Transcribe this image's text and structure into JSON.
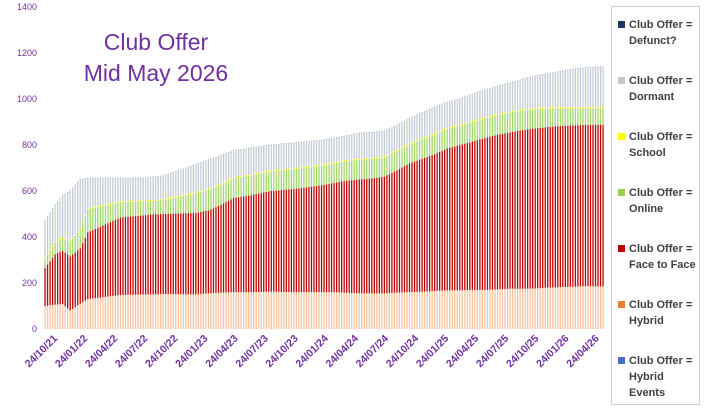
{
  "chart_data": {
    "type": "bar",
    "stacked": true,
    "title_lines": [
      "Club Offer",
      "Mid May 2026"
    ],
    "xlabel": "",
    "ylabel": "",
    "ylim": [
      0,
      1400
    ],
    "y_ticks": [
      0,
      200,
      400,
      600,
      800,
      1000,
      1200,
      1400
    ],
    "x_tick_labels": [
      "24/10/21",
      "24/01/22",
      "24/04/22",
      "24/07/22",
      "24/10/22",
      "24/01/23",
      "24/04/23",
      "24/07/23",
      "24/10/23",
      "24/01/24",
      "24/04/24",
      "24/07/24",
      "24/10/24",
      "24/01/25",
      "24/04/25",
      "24/07/25",
      "24/10/25",
      "24/01/26",
      "24/04/26"
    ],
    "grid": false,
    "legend_position": "right",
    "bars_per_tick": 6,
    "series": [
      {
        "name": "Club Offer = Hybrid Events",
        "color": "#4472c4"
      },
      {
        "name": "Club Offer = Hybrid",
        "color": "#ed7d31"
      },
      {
        "name": "Club Offer = Face to Face",
        "color": "#c00000"
      },
      {
        "name": "Club Offer = Online",
        "color": "#92d050"
      },
      {
        "name": "Club Offer = School",
        "color": "#ffff00"
      },
      {
        "name": "Club Offer = Dormant",
        "color": "#c8c8c8"
      },
      {
        "name": "Club Offer = Defunct?",
        "color": "#1f3864"
      }
    ],
    "anchors": {
      "index": [
        0,
        4,
        7,
        10,
        14,
        17,
        30,
        40,
        42,
        47,
        60,
        65,
        70,
        75,
        81,
        90,
        100,
        110,
        115,
        120,
        125,
        130,
        135,
        140,
        145,
        150,
        155,
        160,
        165,
        170,
        175,
        180,
        185,
        190,
        195,
        200,
        205,
        210,
        215,
        222
      ],
      "hybrid_cum": [
        100,
        106,
        108,
        80,
        110,
        130,
        148,
        150,
        150,
        152,
        150,
        155,
        158,
        160,
        160,
        162,
        160,
        160,
        160,
        158,
        155,
        155,
        155,
        158,
        160,
        162,
        165,
        168,
        168,
        170,
        170,
        172,
        175,
        175,
        176,
        180,
        182,
        184,
        186,
        185
      ],
      "f2f_cum": [
        265,
        325,
        340,
        315,
        350,
        420,
        485,
        495,
        498,
        500,
        505,
        515,
        540,
        570,
        580,
        600,
        610,
        625,
        635,
        645,
        650,
        655,
        662,
        690,
        720,
        740,
        760,
        785,
        800,
        815,
        830,
        845,
        855,
        865,
        872,
        878,
        882,
        885,
        888,
        888
      ],
      "online_cum": [
        305,
        375,
        395,
        380,
        430,
        520,
        550,
        555,
        555,
        560,
        590,
        605,
        625,
        655,
        665,
        685,
        695,
        710,
        720,
        730,
        735,
        740,
        745,
        775,
        800,
        825,
        845,
        870,
        885,
        900,
        915,
        930,
        940,
        950,
        955,
        958,
        960,
        960,
        960,
        960
      ],
      "school_cum": [
        310,
        380,
        400,
        385,
        435,
        525,
        555,
        560,
        560,
        565,
        595,
        610,
        630,
        660,
        670,
        690,
        700,
        715,
        725,
        735,
        740,
        745,
        750,
        780,
        805,
        830,
        850,
        875,
        890,
        905,
        920,
        935,
        945,
        955,
        960,
        963,
        965,
        965,
        965,
        965
      ],
      "dormant_cum": [
        470,
        540,
        580,
        600,
        650,
        655,
        655,
        655,
        660,
        665,
        715,
        735,
        755,
        775,
        785,
        800,
        810,
        820,
        830,
        840,
        850,
        855,
        860,
        885,
        915,
        940,
        965,
        985,
        1000,
        1020,
        1040,
        1055,
        1070,
        1085,
        1100,
        1110,
        1120,
        1130,
        1135,
        1140
      ],
      "defunct_cum": [
        472,
        542,
        582,
        602,
        652,
        657,
        657,
        657,
        662,
        667,
        717,
        737,
        757,
        777,
        787,
        802,
        812,
        822,
        832,
        842,
        852,
        857,
        862,
        887,
        917,
        942,
        967,
        987,
        1002,
        1022,
        1042,
        1057,
        1072,
        1087,
        1102,
        1112,
        1122,
        1132,
        1137,
        1142
      ]
    },
    "bar_count": 223
  }
}
